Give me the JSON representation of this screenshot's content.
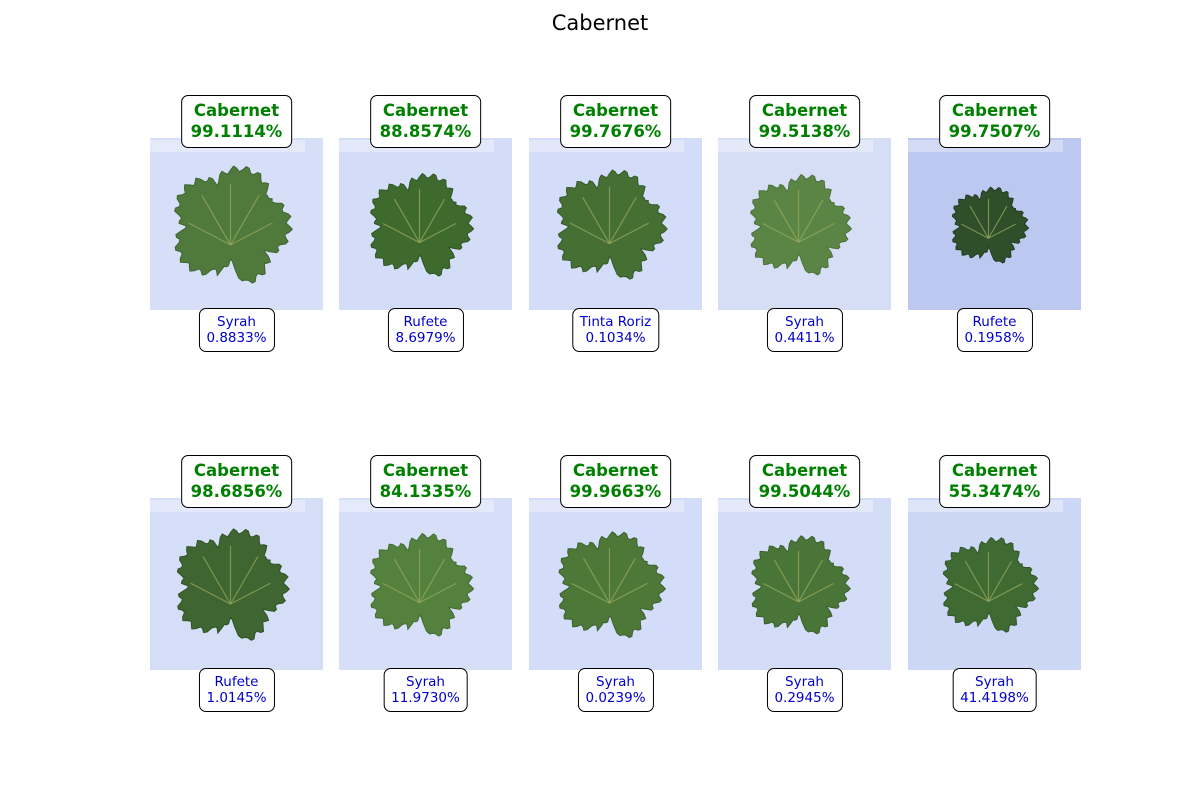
{
  "title": "Cabernet",
  "colors": {
    "predicted_text": "#008000",
    "alternative_text": "#0000cc",
    "box_border": "#000000"
  },
  "grid": {
    "rows": 2,
    "columns": 5,
    "panels": [
      {
        "predicted_class": "Cabernet",
        "predicted_confidence": "99.1114%",
        "alt_class": "Syrah",
        "alt_confidence": "0.8833%"
      },
      {
        "predicted_class": "Cabernet",
        "predicted_confidence": "88.8574%",
        "alt_class": "Rufete",
        "alt_confidence": "8.6979%"
      },
      {
        "predicted_class": "Cabernet",
        "predicted_confidence": "99.7676%",
        "alt_class": "Tinta Roriz",
        "alt_confidence": "0.1034%"
      },
      {
        "predicted_class": "Cabernet",
        "predicted_confidence": "99.5138%",
        "alt_class": "Syrah",
        "alt_confidence": "0.4411%"
      },
      {
        "predicted_class": "Cabernet",
        "predicted_confidence": "99.7507%",
        "alt_class": "Rufete",
        "alt_confidence": "0.1958%"
      },
      {
        "predicted_class": "Cabernet",
        "predicted_confidence": "98.6856%",
        "alt_class": "Rufete",
        "alt_confidence": "1.0145%"
      },
      {
        "predicted_class": "Cabernet",
        "predicted_confidence": "84.1335%",
        "alt_class": "Syrah",
        "alt_confidence": "11.9730%"
      },
      {
        "predicted_class": "Cabernet",
        "predicted_confidence": "99.9663%",
        "alt_class": "Syrah",
        "alt_confidence": "0.0239%"
      },
      {
        "predicted_class": "Cabernet",
        "predicted_confidence": "99.5044%",
        "alt_class": "Syrah",
        "alt_confidence": "0.2945%"
      },
      {
        "predicted_class": "Cabernet",
        "predicted_confidence": "55.3474%",
        "alt_class": "Syrah",
        "alt_confidence": "41.4198%"
      }
    ]
  }
}
